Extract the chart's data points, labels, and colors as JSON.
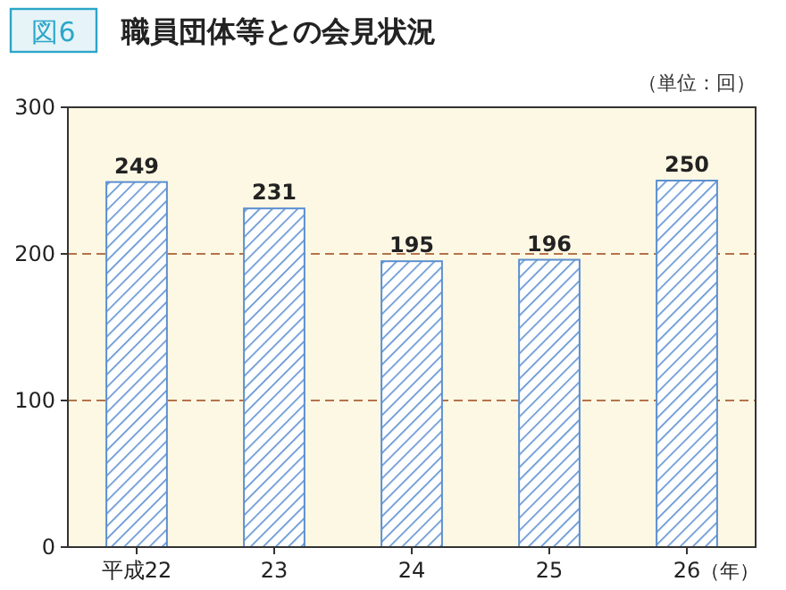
{
  "chart_data": {
    "type": "bar",
    "title": "職員団体等との会見状況",
    "annotations": [
      "図6",
      "（単位：回）"
    ],
    "xlabel": "（年）",
    "categories": [
      "平成22",
      "23",
      "24",
      "25",
      "26"
    ],
    "values": [
      249,
      231,
      195,
      196,
      250
    ],
    "color": "#5b8fd0",
    "ylim": [
      0,
      300
    ],
    "yticks": [
      0,
      100,
      200,
      300
    ],
    "grid": "y",
    "data_labels": true
  }
}
